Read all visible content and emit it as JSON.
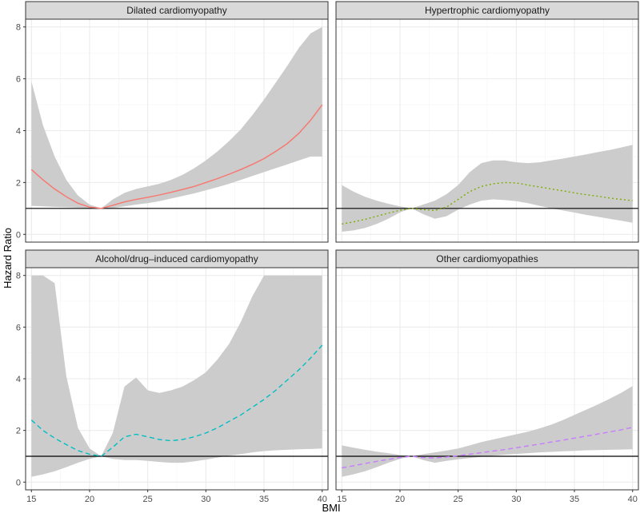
{
  "colors": {
    "band": "#cccccc",
    "grid_major": "#ebebeb",
    "grid_minor": "#f4f4f4",
    "border": "#333333",
    "strip": "#d9d9d9",
    "refline": "#000000"
  },
  "chart_data": {
    "type": "line",
    "xlabel": "BMI",
    "ylabel": "Hazard Ratio",
    "x_ticks": [
      15,
      20,
      25,
      30,
      35,
      40
    ],
    "y_ticks": [
      0,
      2,
      4,
      6,
      8
    ],
    "xlim": [
      14.5,
      40.5
    ],
    "ylim": [
      -0.3,
      8.3
    ],
    "reference_line": 1,
    "grid": true,
    "panels": [
      {
        "title": "Dilated cardiomyopathy",
        "color": "#f8766d",
        "linestyle": "solid",
        "x": [
          15,
          16,
          17,
          18,
          19,
          20,
          21,
          22,
          23,
          24,
          25,
          26,
          27,
          28,
          29,
          30,
          31,
          32,
          33,
          34,
          35,
          36,
          37,
          38,
          39,
          40
        ],
        "hr": [
          2.5,
          2.1,
          1.75,
          1.45,
          1.2,
          1.05,
          1.0,
          1.12,
          1.25,
          1.35,
          1.43,
          1.52,
          1.62,
          1.73,
          1.85,
          2.0,
          2.15,
          2.32,
          2.5,
          2.7,
          2.92,
          3.2,
          3.5,
          3.9,
          4.4,
          5.0
        ],
        "lower": [
          1.1,
          1.08,
          1.06,
          1.05,
          1.03,
          1.01,
          1.0,
          1.02,
          1.08,
          1.15,
          1.2,
          1.28,
          1.38,
          1.48,
          1.58,
          1.7,
          1.82,
          1.95,
          2.1,
          2.25,
          2.4,
          2.55,
          2.7,
          2.85,
          3.0,
          3.0
        ],
        "upper": [
          5.9,
          4.2,
          3.0,
          2.1,
          1.5,
          1.15,
          1.0,
          1.35,
          1.6,
          1.75,
          1.85,
          1.95,
          2.1,
          2.3,
          2.55,
          2.85,
          3.2,
          3.6,
          4.05,
          4.6,
          5.2,
          5.85,
          6.5,
          7.2,
          7.75,
          8.0
        ]
      },
      {
        "title": "Hypertrophic cardiomyopathy",
        "color": "#7cae00",
        "linestyle": "dotted",
        "x": [
          15,
          16,
          17,
          18,
          19,
          20,
          21,
          22,
          23,
          24,
          25,
          26,
          27,
          28,
          29,
          30,
          31,
          32,
          33,
          34,
          35,
          36,
          37,
          38,
          39,
          40
        ],
        "hr": [
          0.4,
          0.48,
          0.58,
          0.7,
          0.82,
          0.93,
          1.0,
          0.95,
          0.92,
          1.05,
          1.35,
          1.65,
          1.85,
          1.95,
          2.0,
          1.98,
          1.9,
          1.83,
          1.75,
          1.68,
          1.6,
          1.53,
          1.47,
          1.4,
          1.35,
          1.3
        ],
        "lower": [
          0.1,
          0.15,
          0.25,
          0.4,
          0.6,
          0.85,
          1.0,
          0.78,
          0.6,
          0.7,
          0.95,
          1.15,
          1.3,
          1.35,
          1.32,
          1.28,
          1.2,
          1.1,
          1.0,
          0.92,
          0.84,
          0.75,
          0.68,
          0.6,
          0.53,
          0.45
        ],
        "upper": [
          1.9,
          1.65,
          1.45,
          1.3,
          1.18,
          1.08,
          1.0,
          1.15,
          1.3,
          1.55,
          1.9,
          2.4,
          2.75,
          2.85,
          2.85,
          2.78,
          2.75,
          2.78,
          2.85,
          2.92,
          3.0,
          3.08,
          3.17,
          3.25,
          3.35,
          3.45
        ]
      },
      {
        "title": "Alcohol/drug–induced cardiomyopathy",
        "color": "#00bfc4",
        "linestyle": "dashed",
        "x": [
          15,
          16,
          17,
          18,
          19,
          20,
          21,
          22,
          23,
          24,
          25,
          26,
          27,
          28,
          29,
          30,
          31,
          32,
          33,
          34,
          35,
          36,
          37,
          38,
          39,
          40
        ],
        "hr": [
          2.4,
          2.0,
          1.7,
          1.45,
          1.22,
          1.08,
          1.0,
          1.35,
          1.75,
          1.85,
          1.75,
          1.65,
          1.6,
          1.65,
          1.75,
          1.9,
          2.1,
          2.35,
          2.6,
          2.9,
          3.2,
          3.55,
          3.95,
          4.35,
          4.8,
          5.3
        ],
        "lower": [
          0.2,
          0.3,
          0.42,
          0.58,
          0.75,
          0.9,
          1.0,
          0.9,
          0.85,
          0.85,
          0.82,
          0.78,
          0.75,
          0.75,
          0.8,
          0.87,
          0.95,
          1.02,
          1.08,
          1.15,
          1.2,
          1.23,
          1.25,
          1.27,
          1.28,
          1.3
        ],
        "upper": [
          8.0,
          8.0,
          7.7,
          4.1,
          2.1,
          1.3,
          1.0,
          1.9,
          3.7,
          4.05,
          3.55,
          3.45,
          3.55,
          3.7,
          3.95,
          4.25,
          4.75,
          5.35,
          6.2,
          7.2,
          8.0,
          8.0,
          8.0,
          8.0,
          8.0,
          8.0
        ]
      },
      {
        "title": "Other cardiomyopathies",
        "color": "#c77cff",
        "linestyle": "dashed",
        "x": [
          15,
          16,
          17,
          18,
          19,
          20,
          21,
          22,
          23,
          24,
          25,
          26,
          27,
          28,
          29,
          30,
          31,
          32,
          33,
          34,
          35,
          36,
          37,
          38,
          39,
          40
        ],
        "hr": [
          0.55,
          0.63,
          0.72,
          0.8,
          0.88,
          0.95,
          1.0,
          0.95,
          0.93,
          0.97,
          1.02,
          1.08,
          1.14,
          1.2,
          1.26,
          1.33,
          1.4,
          1.47,
          1.55,
          1.62,
          1.7,
          1.78,
          1.86,
          1.94,
          2.02,
          2.12
        ],
        "lower": [
          0.2,
          0.3,
          0.42,
          0.58,
          0.75,
          0.9,
          1.0,
          0.85,
          0.75,
          0.82,
          0.88,
          0.93,
          0.98,
          1.02,
          1.06,
          1.09,
          1.12,
          1.15,
          1.17,
          1.19,
          1.21,
          1.23,
          1.24,
          1.25,
          1.26,
          1.27
        ],
        "upper": [
          1.42,
          1.33,
          1.25,
          1.18,
          1.12,
          1.05,
          1.0,
          1.08,
          1.15,
          1.22,
          1.3,
          1.42,
          1.55,
          1.65,
          1.75,
          1.85,
          1.95,
          2.08,
          2.22,
          2.4,
          2.6,
          2.8,
          3.0,
          3.22,
          3.45,
          3.72
        ]
      }
    ]
  }
}
